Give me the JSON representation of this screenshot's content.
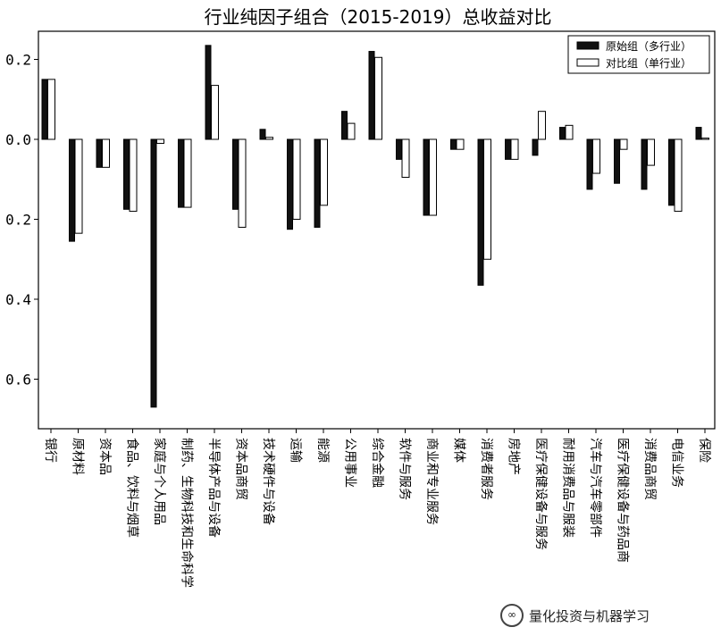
{
  "chart_data": {
    "type": "bar",
    "title": "行业纯因子组合（2015-2019）总收益对比",
    "xlabel": "",
    "ylabel": "",
    "ylim": [
      -0.72,
      0.25
    ],
    "yticks": [
      {
        "value": 0.2,
        "label": "0.2"
      },
      {
        "value": 0.0,
        "label": "0.0"
      },
      {
        "value": -0.2,
        "label": "0.2"
      },
      {
        "value": -0.4,
        "label": "0.4"
      },
      {
        "value": -0.6,
        "label": "0.6"
      }
    ],
    "legend_position": "top-right",
    "categories": [
      "银行",
      "原材料",
      "资本品",
      "食品、饮料与烟草",
      "家庭与个人用品",
      "制药、生物科技和生命科学",
      "半导体产品与设备",
      "资本品商贸",
      "技术硬件与设备",
      "运输",
      "能源",
      "公用事业",
      "综合金融",
      "软件与服务",
      "商业和专业服务",
      "媒体",
      "消费者服务",
      "房地产",
      "医疗保健设备与服务",
      "耐用消费品与服装",
      "汽车与汽车零部件",
      "医疗保健设备与药品商",
      "消费品商贸",
      "电信业务",
      "保险"
    ],
    "series": [
      {
        "name": "原始组（多行业）",
        "style": "dark",
        "values": [
          0.15,
          -0.255,
          -0.07,
          -0.175,
          -0.67,
          -0.17,
          0.235,
          -0.175,
          0.025,
          -0.225,
          -0.22,
          0.07,
          0.22,
          -0.05,
          -0.19,
          -0.025,
          -0.365,
          -0.05,
          -0.04,
          0.03,
          -0.125,
          -0.11,
          -0.125,
          -0.165,
          0.03
        ]
      },
      {
        "name": "对比组（单行业）",
        "style": "light",
        "values": [
          0.15,
          -0.235,
          -0.07,
          -0.18,
          -0.01,
          -0.17,
          0.135,
          -0.22,
          0.005,
          -0.2,
          -0.165,
          0.04,
          0.205,
          -0.095,
          -0.19,
          -0.025,
          -0.3,
          -0.05,
          0.07,
          0.035,
          -0.085,
          -0.025,
          -0.065,
          -0.18,
          0.003
        ]
      }
    ],
    "colors": {
      "dark_face": "#111111",
      "light_face": "#ffffff",
      "edge": "#000000"
    }
  },
  "watermark": {
    "text": "量化投资与机器学习"
  }
}
